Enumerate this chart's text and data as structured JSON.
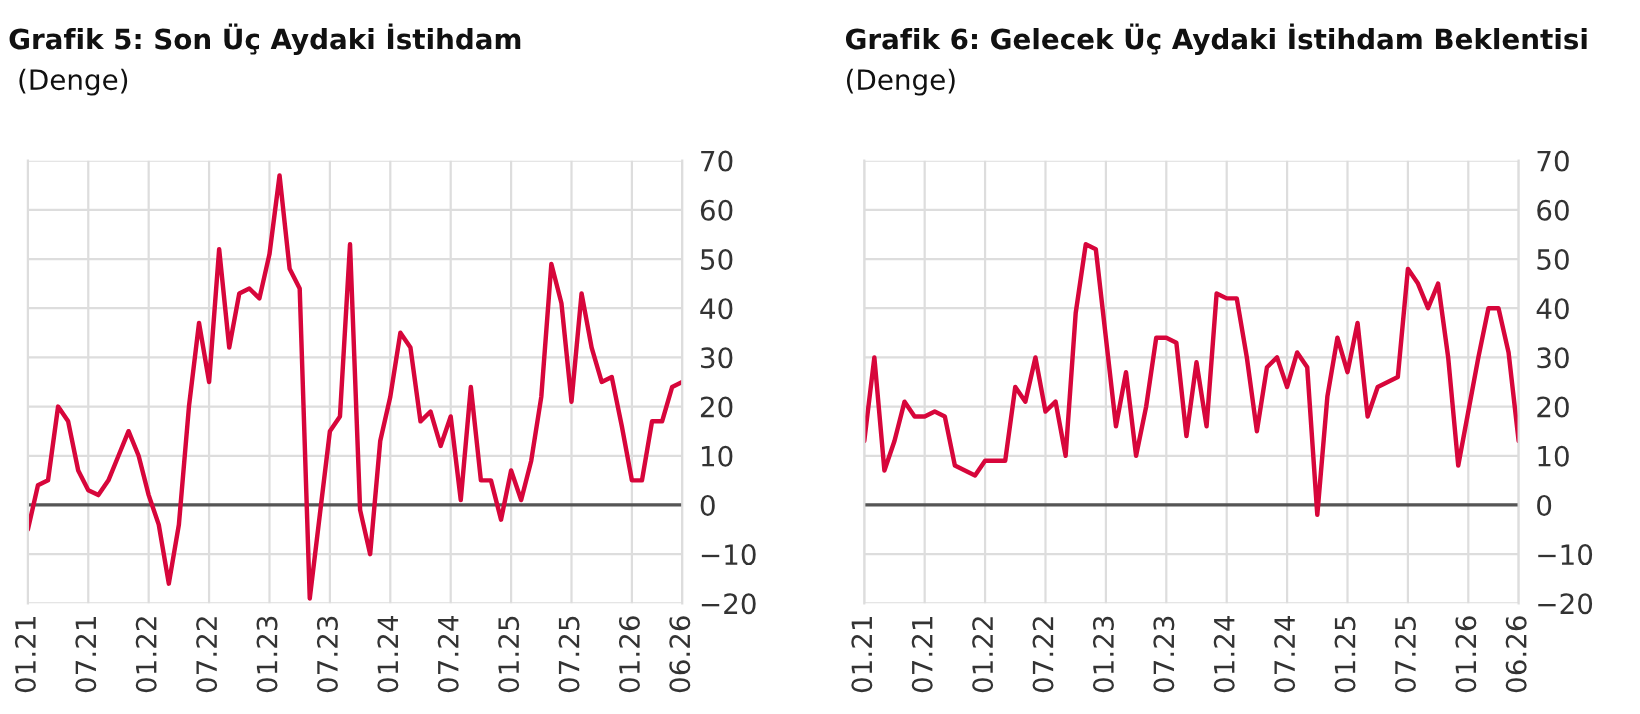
{
  "chart_data": [
    {
      "type": "line",
      "title": "Grafik 5: Son Üç Aydaki İstihdam",
      "subtitle": " (Denge)",
      "categories": [
        "01.21",
        null,
        null,
        null,
        null,
        null,
        "07.21",
        null,
        null,
        null,
        null,
        null,
        "01.22",
        null,
        null,
        null,
        null,
        null,
        "07.22",
        null,
        null,
        null,
        null,
        null,
        "01.23",
        null,
        null,
        null,
        null,
        null,
        "07.23",
        null,
        null,
        null,
        null,
        null,
        "01.24",
        null,
        null,
        null,
        null,
        null,
        "07.24",
        null,
        null,
        null,
        null,
        null,
        "01.25",
        null,
        null,
        null,
        null,
        null,
        "07.25",
        null,
        null,
        null,
        null,
        null,
        "01.26",
        null,
        null,
        null,
        null,
        "06.26"
      ],
      "series": [
        {
          "color": "#d7063b",
          "values": [
            -5,
            4,
            5,
            20,
            17,
            7,
            3,
            2,
            5,
            10,
            15,
            10,
            2,
            -4,
            -16,
            -4,
            20,
            37,
            25,
            52,
            32,
            43,
            44,
            42,
            51,
            67,
            48,
            44,
            -19,
            -2,
            15,
            18,
            53,
            -1,
            -10,
            13,
            22,
            35,
            32,
            17,
            19,
            12,
            18,
            1,
            24,
            5,
            5,
            -3,
            7,
            1,
            9,
            22,
            49,
            41,
            21,
            43,
            32,
            25,
            26,
            16,
            5,
            5,
            17,
            17,
            24,
            25
          ]
        }
      ],
      "ylim": [
        -20,
        70
      ],
      "yticks": [
        -20,
        -10,
        0,
        10,
        20,
        30,
        40,
        50,
        60,
        70
      ],
      "grid": true,
      "marker": "none",
      "line_style": "solid",
      "ref_lines": [
        {
          "axis": "y",
          "value": 0,
          "color": "#555555"
        }
      ]
    },
    {
      "type": "line",
      "title": "Grafik 6: Gelecek Üç Aydaki İstihdam Beklentisi",
      "subtitle": "(Denge)",
      "categories": [
        "01.21",
        null,
        null,
        null,
        null,
        null,
        "07.21",
        null,
        null,
        null,
        null,
        null,
        "01.22",
        null,
        null,
        null,
        null,
        null,
        "07.22",
        null,
        null,
        null,
        null,
        null,
        "01.23",
        null,
        null,
        null,
        null,
        null,
        "07.23",
        null,
        null,
        null,
        null,
        null,
        "01.24",
        null,
        null,
        null,
        null,
        null,
        "07.24",
        null,
        null,
        null,
        null,
        null,
        "01.25",
        null,
        null,
        null,
        null,
        null,
        "07.25",
        null,
        null,
        null,
        null,
        null,
        "01.26",
        null,
        null,
        null,
        null,
        "06.26"
      ],
      "series": [
        {
          "color": "#d7063b",
          "values": [
            13,
            30,
            7,
            13,
            21,
            18,
            18,
            19,
            18,
            8,
            7,
            6,
            9,
            9,
            9,
            24,
            21,
            30,
            19,
            21,
            10,
            39,
            53,
            52,
            34,
            16,
            27,
            10,
            20,
            34,
            34,
            33,
            14,
            29,
            16,
            43,
            42,
            42,
            30,
            15,
            28,
            30,
            24,
            31,
            28,
            -2,
            22,
            34,
            27,
            37,
            18,
            24,
            25,
            26,
            48,
            45,
            40,
            45,
            30,
            8,
            19,
            30,
            40,
            40,
            31,
            13
          ]
        }
      ],
      "ylim": [
        -20,
        70
      ],
      "yticks": [
        -20,
        -10,
        0,
        10,
        20,
        30,
        40,
        50,
        60,
        70
      ],
      "grid": true,
      "marker": "none",
      "line_style": "solid",
      "ref_lines": [
        {
          "axis": "y",
          "value": 0,
          "color": "#555555"
        }
      ]
    }
  ]
}
